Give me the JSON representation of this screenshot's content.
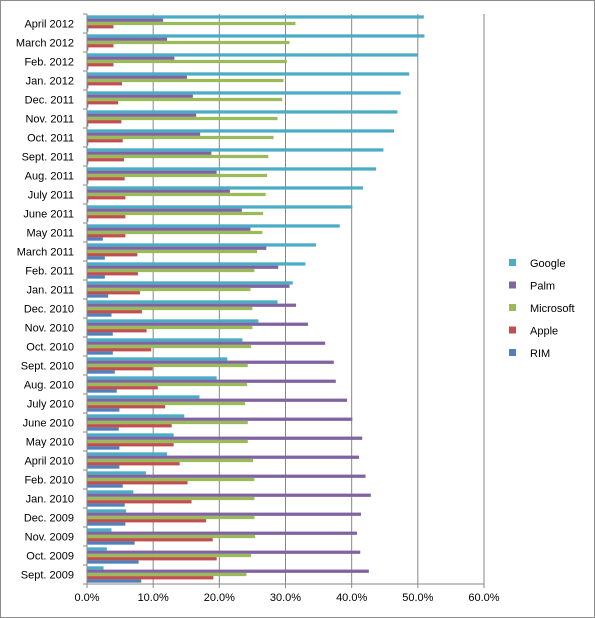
{
  "chart_data": {
    "type": "bar",
    "orientation": "horizontal",
    "title": "",
    "xlabel": "",
    "ylabel": "",
    "xlim": [
      0,
      0.6
    ],
    "x_ticks": [
      "0.0%",
      "10.0%",
      "20.0%",
      "30.0%",
      "40.0%",
      "50.0%",
      "60.0%"
    ],
    "grid": "vertical major gridlines",
    "legend_position": "right",
    "categories": [
      "April 2012",
      "March 2012",
      "Feb. 2012",
      "Jan. 2012",
      "Dec. 2011",
      "Nov. 2011",
      "Oct. 2011",
      "Sept. 2011",
      "Aug. 2011",
      "July 2011",
      "June 2011",
      "May 2011",
      "March 2011",
      "Feb. 2011",
      "Jan. 2011",
      "Dec. 2010",
      "Nov. 2010",
      "Oct. 2010",
      "Sept. 2010",
      "Aug. 2010",
      "July 2010",
      "June 2010",
      "May 2010",
      "April 2010",
      "Feb. 2010",
      "Jan. 2010",
      "Dec. 2009",
      "Nov. 2009",
      "Oct. 2009",
      "Sept. 2009"
    ],
    "series": [
      {
        "name": "Google",
        "color": "#4BACC6",
        "values": [
          0.509,
          0.51,
          0.5,
          0.487,
          0.474,
          0.469,
          0.464,
          0.448,
          0.437,
          0.417,
          0.401,
          0.382,
          0.346,
          0.33,
          0.311,
          0.288,
          0.259,
          0.235,
          0.212,
          0.196,
          0.17,
          0.147,
          0.131,
          0.121,
          0.089,
          0.07,
          0.059,
          0.037,
          0.03,
          0.025
        ]
      },
      {
        "name": "Palm",
        "color": "#8064A2",
        "values": [
          0.115,
          0.121,
          0.132,
          0.151,
          0.16,
          0.165,
          0.171,
          0.188,
          0.196,
          0.216,
          0.234,
          0.247,
          0.271,
          0.289,
          0.306,
          0.316,
          0.334,
          0.36,
          0.373,
          0.376,
          0.393,
          0.401,
          0.416,
          0.411,
          0.421,
          0.429,
          0.414,
          0.408,
          0.413,
          0.426
        ]
      },
      {
        "name": "Microsoft",
        "color": "#9BBB59",
        "values": [
          0.315,
          0.306,
          0.302,
          0.297,
          0.295,
          0.288,
          0.282,
          0.274,
          0.272,
          0.27,
          0.266,
          0.265,
          0.257,
          0.253,
          0.247,
          0.25,
          0.25,
          0.248,
          0.243,
          0.242,
          0.239,
          0.243,
          0.243,
          0.251,
          0.253,
          0.253,
          0.253,
          0.254,
          0.248,
          0.241
        ]
      },
      {
        "name": "Apple",
        "color": "#C0504D",
        "values": [
          0.04,
          0.04,
          0.04,
          0.053,
          0.047,
          0.052,
          0.054,
          0.056,
          0.057,
          0.058,
          0.058,
          0.058,
          0.076,
          0.077,
          0.08,
          0.083,
          0.09,
          0.097,
          0.099,
          0.107,
          0.118,
          0.128,
          0.131,
          0.14,
          0.152,
          0.158,
          0.18,
          0.19,
          0.196,
          0.191
        ]
      },
      {
        "name": "RIM",
        "color": "#4F81BD",
        "values": [
          0.002,
          0.002,
          0.002,
          0.002,
          0.002,
          0.002,
          0.002,
          0.002,
          0.002,
          0.002,
          0.002,
          0.024,
          0.027,
          0.027,
          0.032,
          0.037,
          0.039,
          0.039,
          0.042,
          0.045,
          0.049,
          0.048,
          0.049,
          0.049,
          0.054,
          0.057,
          0.058,
          0.072,
          0.078,
          0.082
        ]
      }
    ],
    "legend_order": [
      "Google",
      "Palm",
      "Microsoft",
      "Apple",
      "RIM"
    ]
  }
}
